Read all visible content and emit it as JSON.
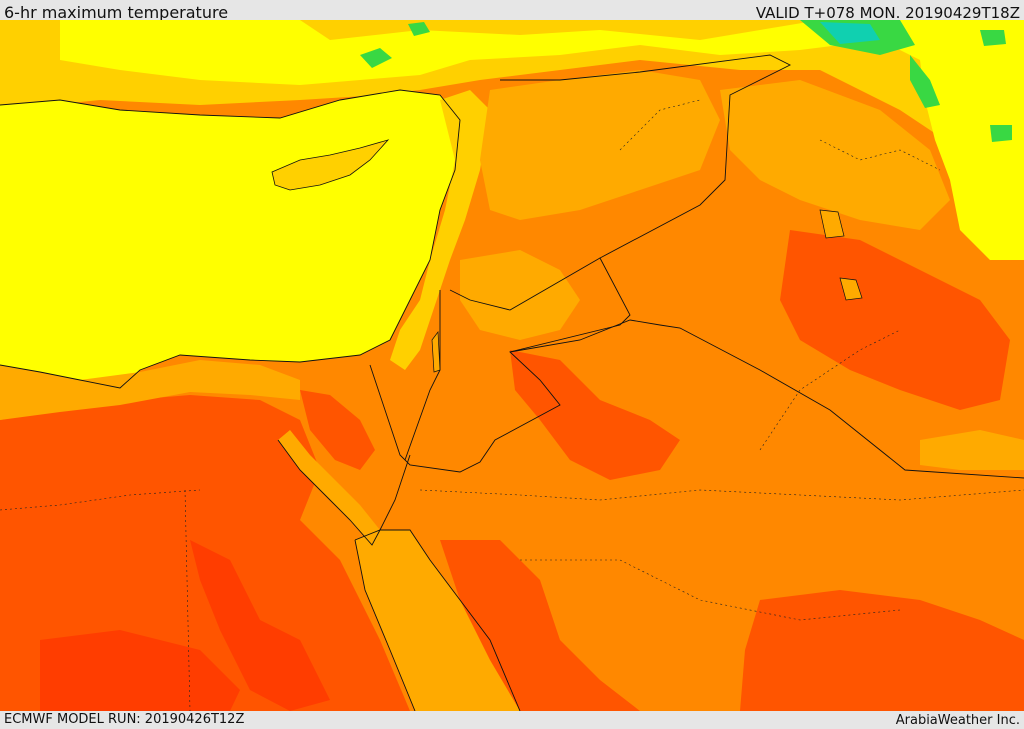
{
  "header": {
    "title": "6-hr maximum temperature",
    "valid": "VALID T+078 MON. 20190429T18Z"
  },
  "footer": {
    "model_run": "ECMWF MODEL RUN: 20190426T12Z",
    "credit": "ArabiaWeather Inc."
  },
  "colors": {
    "mild": "#ffff00",
    "warm": "#ffd000",
    "hot": "#ffaa00",
    "very_hot": "#ff8800",
    "extreme": "#ff5500",
    "cool_green": "#39d843",
    "cool_teal": "#10d0b0",
    "border": "#111111"
  }
}
